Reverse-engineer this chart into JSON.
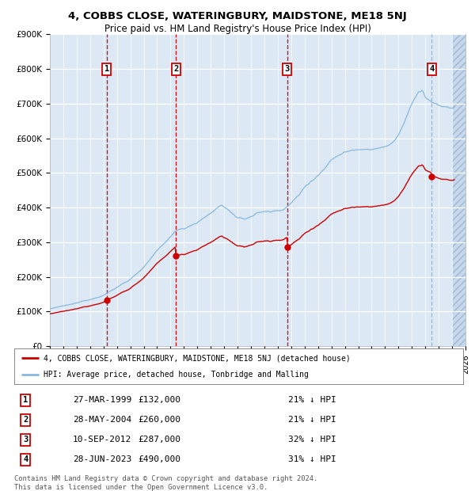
{
  "title": "4, COBBS CLOSE, WATERINGBURY, MAIDSTONE, ME18 5NJ",
  "subtitle": "Price paid vs. HM Land Registry's House Price Index (HPI)",
  "legend_line1": "4, COBBS CLOSE, WATERINGBURY, MAIDSTONE, ME18 5NJ (detached house)",
  "legend_line2": "HPI: Average price, detached house, Tonbridge and Malling",
  "footer": "Contains HM Land Registry data © Crown copyright and database right 2024.\nThis data is licensed under the Open Government Licence v3.0.",
  "transactions": [
    {
      "num": 1,
      "date": "27-MAR-1999",
      "price": 132000,
      "pct": "21%",
      "year_dec": 1999.23
    },
    {
      "num": 2,
      "date": "28-MAY-2004",
      "price": 260000,
      "pct": "21%",
      "year_dec": 2004.41
    },
    {
      "num": 3,
      "date": "10-SEP-2012",
      "price": 287000,
      "pct": "32%",
      "year_dec": 2012.69
    },
    {
      "num": 4,
      "date": "28-JUN-2023",
      "price": 490000,
      "pct": "31%",
      "year_dec": 2023.49
    }
  ],
  "xmin": 1995.0,
  "xmax": 2026.0,
  "ymin": 0,
  "ymax": 900000,
  "yticks": [
    0,
    100000,
    200000,
    300000,
    400000,
    500000,
    600000,
    700000,
    800000,
    900000
  ],
  "ytick_labels": [
    "£0",
    "£100K",
    "£200K",
    "£300K",
    "£400K",
    "£500K",
    "£600K",
    "£700K",
    "£800K",
    "£900K"
  ],
  "bg_color_main": "#dce9f5",
  "bg_color_hatch": "#c5d8ec",
  "red_line_color": "#cc0000",
  "blue_line_color": "#88b8dd",
  "vline_red": "#cc0000",
  "vline_blue": "#88b8dd",
  "grid_color": "#ffffff",
  "box_border": "#cc0000",
  "hatch_start": 2025.0
}
